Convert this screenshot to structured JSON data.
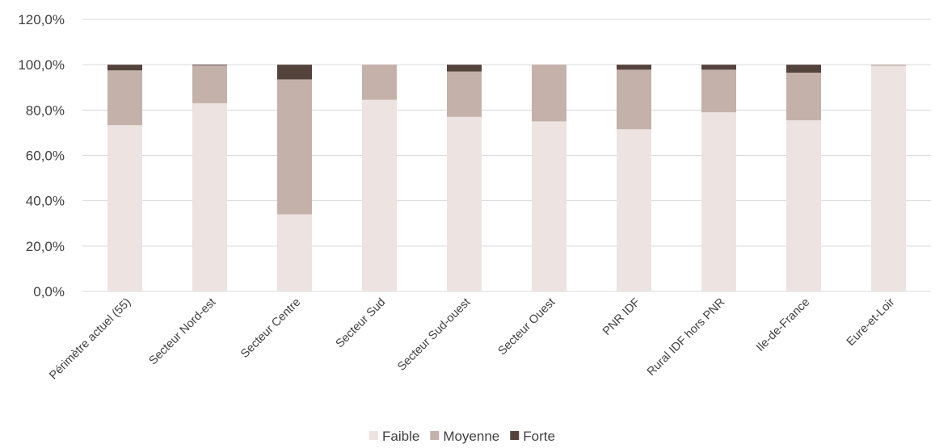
{
  "chart_data": {
    "type": "bar",
    "stacked": true,
    "title": "",
    "xlabel": "",
    "ylabel": "",
    "ylim": [
      0,
      120
    ],
    "yticks": [
      0,
      20,
      40,
      60,
      80,
      100,
      120
    ],
    "ytick_labels": [
      "0,0%",
      "20,0%",
      "40,0%",
      "60,0%",
      "80,0%",
      "100,0%",
      "120,0%"
    ],
    "grid": true,
    "legend_position": "bottom",
    "categories": [
      "Périmètre actuel (55)",
      "Secteur Nord-est",
      "Secteur Centre",
      "Secteur Sud",
      "Secteur Sud-ouest",
      "Secteur Ouest",
      "PNR IDF",
      "Rural IDF hors PNR",
      "Ile-de-France",
      "Eure-et-Loir"
    ],
    "series": [
      {
        "name": "Faible",
        "color": "#ede3e1",
        "values": [
          73.3,
          83.0,
          34.0,
          84.5,
          77.0,
          75.0,
          71.5,
          79.0,
          75.5,
          99.5
        ]
      },
      {
        "name": "Moyenne",
        "color": "#c4b1a9",
        "values": [
          24.2,
          16.7,
          59.5,
          15.5,
          20.0,
          25.0,
          26.3,
          18.8,
          21.0,
          0.5
        ]
      },
      {
        "name": "Forte",
        "color": "#54433c",
        "values": [
          2.5,
          0.3,
          6.5,
          0.0,
          3.0,
          0.0,
          2.2,
          2.2,
          3.5,
          0.0
        ]
      }
    ]
  }
}
